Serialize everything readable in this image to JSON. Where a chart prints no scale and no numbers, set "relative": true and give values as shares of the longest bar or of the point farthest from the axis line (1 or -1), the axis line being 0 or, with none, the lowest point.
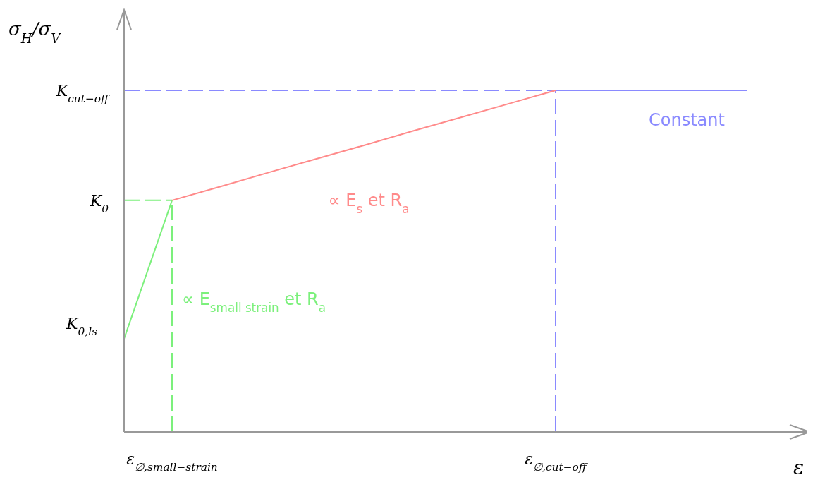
{
  "chart_data": {
    "type": "line",
    "relative": true,
    "xlabel": "ε",
    "ylabel": "σ$_{H}$/σ$_{V}$",
    "line_style": "solid",
    "marker": "none",
    "categories": [
      null,
      "ε$_{∅,small−strain}$",
      null,
      null,
      null,
      null,
      null,
      null,
      null,
      "ε$_{∅,cut−off}$",
      null,
      null,
      null,
      null
    ],
    "series": [
      {
        "name": "∝ E$_{small strain}$ et R$_{a}$",
        "color": "#7cf07c",
        "values": [
          0.273,
          0.678,
          null,
          null,
          null,
          null,
          null,
          null,
          null,
          null,
          null,
          null,
          null,
          null
        ]
      },
      {
        "name": "∝ E$_{s}$ et R$_{a}$",
        "color": "#ff8a8a",
        "values": [
          null,
          0.678,
          0.718,
          0.759,
          0.799,
          0.839,
          0.88,
          0.92,
          0.96,
          1,
          null,
          null,
          null,
          null
        ]
      },
      {
        "name": "Constant",
        "color": "#8a8aff",
        "values": [
          null,
          null,
          null,
          null,
          null,
          null,
          null,
          null,
          null,
          1,
          1,
          1,
          1,
          1
        ]
      }
    ],
    "ref_lines": [
      {
        "axis": "y",
        "value": 1,
        "label": "K$_{cut−off}$",
        "color": "#8a8aff",
        "line_style": "dashed"
      },
      {
        "axis": "y",
        "value": 0.678,
        "label": "K$_{0}$",
        "color": "#7cf07c",
        "line_style": "dashed"
      },
      {
        "axis": "x",
        "value": "ε$_{∅,small−strain}$",
        "color": "#7cf07c",
        "line_style": "dashed"
      },
      {
        "axis": "x",
        "value": "ε$_{∅,cut−off}$",
        "color": "#8a8aff",
        "line_style": "dashed"
      }
    ],
    "annotations": [
      "K$_{0,ls}$"
    ]
  }
}
